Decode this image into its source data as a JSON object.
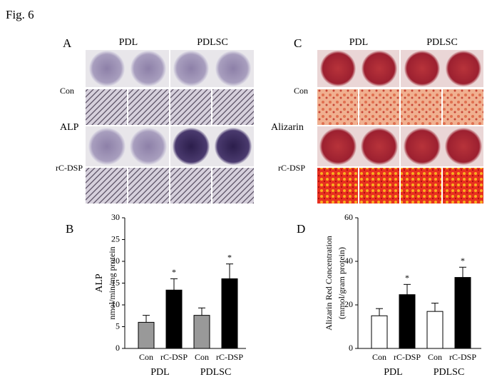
{
  "figure_label": "Fig. 6",
  "panel_a": {
    "letter": "A",
    "columns": [
      "PDL",
      "PDLSC"
    ],
    "rows": [
      "Con",
      "rC-DSP"
    ],
    "stain": "ALP"
  },
  "panel_c": {
    "letter": "C",
    "columns": [
      "PDL",
      "PDLSC"
    ],
    "rows": [
      "Con",
      "rC-DSP"
    ],
    "stain": "Alizarin"
  },
  "chart_data": [
    {
      "type": "bar",
      "letter": "B",
      "y_label": [
        "ALP",
        "nmol/min/mg protein"
      ],
      "categories": [
        "Con",
        "rC-DSP",
        "Con",
        "rC-DSP"
      ],
      "groups": [
        "PDL",
        "PDLSC"
      ],
      "values": [
        6,
        13.4,
        7.6,
        16
      ],
      "errors": [
        1.6,
        2.6,
        1.7,
        3.4
      ],
      "colors": [
        "#999999",
        "#000000",
        "#999999",
        "#000000"
      ],
      "significance": [
        null,
        "*",
        null,
        "*"
      ],
      "ylim": [
        0,
        30
      ],
      "yticks": [
        0,
        5,
        10,
        15,
        20,
        25,
        30
      ]
    },
    {
      "type": "bar",
      "letter": "D",
      "y_label": [
        "Alizarin Red Concentration",
        "(mmol/gram protein)"
      ],
      "categories": [
        "Con",
        "rC-DSP",
        "Con",
        "rC-DSP"
      ],
      "groups": [
        "PDL",
        "PDLSC"
      ],
      "values": [
        15,
        24.7,
        17,
        32.6
      ],
      "errors": [
        3.3,
        4.7,
        3.8,
        4.7
      ],
      "colors": [
        "#ffffff",
        "#000000",
        "#ffffff",
        "#000000"
      ],
      "significance": [
        null,
        "*",
        null,
        "*"
      ],
      "ylim": [
        0,
        60
      ],
      "yticks": [
        0,
        20,
        40,
        60
      ]
    }
  ]
}
